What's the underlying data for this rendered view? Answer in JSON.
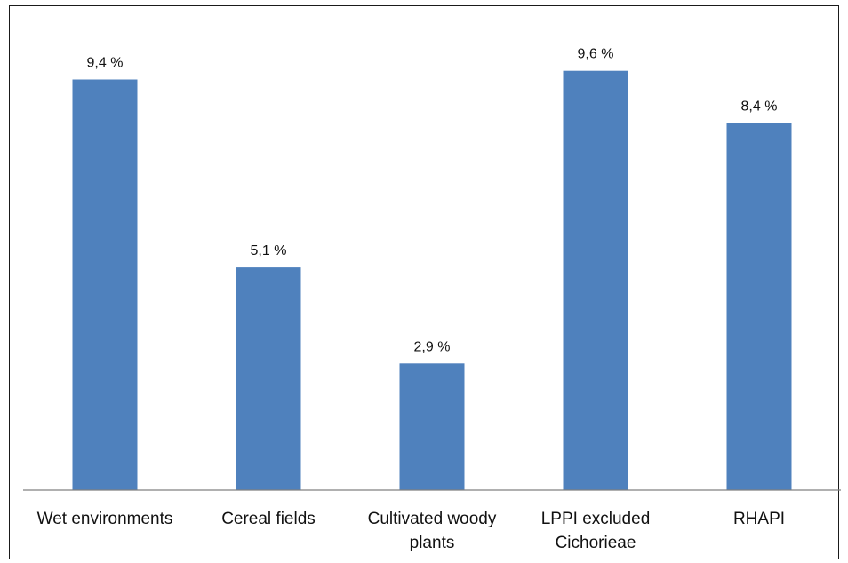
{
  "chart_data": {
    "type": "bar",
    "categories": [
      [
        "Wet environments"
      ],
      [
        "Cereal fields"
      ],
      [
        "Cultivated woody",
        "plants"
      ],
      [
        "LPPI excluded",
        "Cichorieae"
      ],
      [
        "RHAPI"
      ]
    ],
    "values": [
      9.4,
      5.1,
      2.9,
      9.6,
      8.4
    ],
    "value_labels": [
      "9,4 %",
      "5,1 %",
      "2,9 %",
      "9,6 %",
      "8,4 %"
    ],
    "bar_color": "#4f81bd",
    "axis_color": "#808080",
    "grid": false,
    "legend": "none"
  }
}
